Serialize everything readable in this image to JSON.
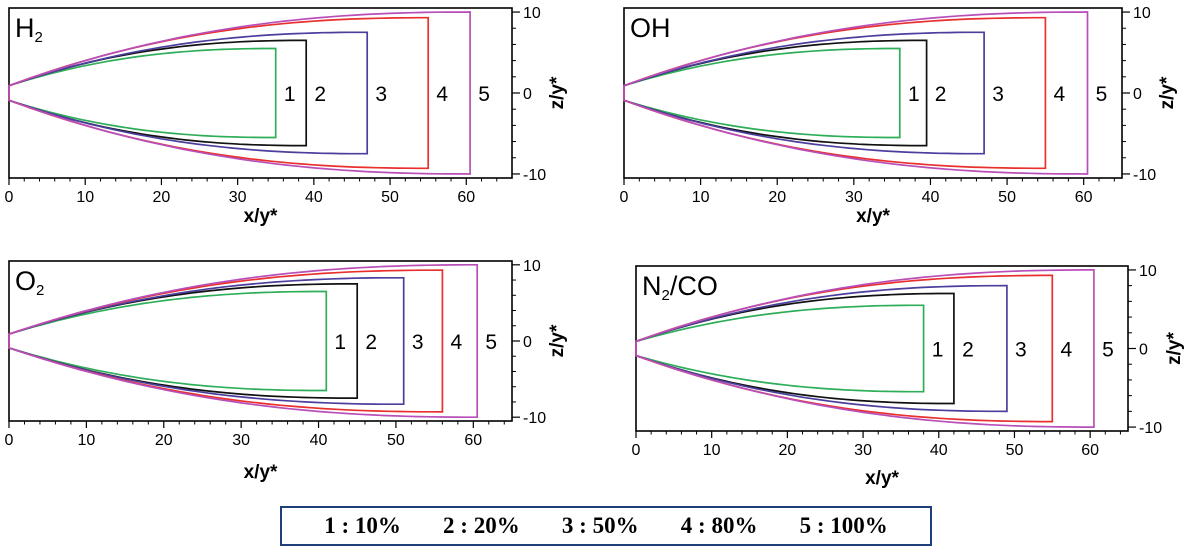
{
  "chart_data": [
    {
      "type": "line",
      "title": "H2",
      "xlabel": "x/y*",
      "ylabel": "z/y*",
      "xlim": [
        0,
        66
      ],
      "ylim": [
        -10.5,
        10.5
      ],
      "xticks": [
        "0",
        "10",
        "20",
        "30",
        "40",
        "50",
        "60"
      ],
      "yticks": [
        "10",
        "0",
        "-10"
      ],
      "series": [
        {
          "name": "1",
          "x_end": 35,
          "half_width": 5.5
        },
        {
          "name": "2",
          "x_end": 39,
          "half_width": 6.5
        },
        {
          "name": "3",
          "x_end": 47,
          "half_width": 7.5
        },
        {
          "name": "4",
          "x_end": 55,
          "half_width": 9.3
        },
        {
          "name": "5",
          "x_end": 60.5,
          "half_width": 10
        }
      ]
    },
    {
      "type": "line",
      "title": "OH",
      "xlabel": "x/y*",
      "ylabel": "z/y*",
      "xlim": [
        0,
        65
      ],
      "ylim": [
        -10.5,
        10.5
      ],
      "xticks": [
        "0",
        "10",
        "20",
        "30",
        "40",
        "50",
        "60"
      ],
      "yticks": [
        "10",
        "0",
        "-10"
      ],
      "series": [
        {
          "name": "1",
          "x_end": 36,
          "half_width": 5.5
        },
        {
          "name": "2",
          "x_end": 39.5,
          "half_width": 6.5
        },
        {
          "name": "3",
          "x_end": 47,
          "half_width": 7.5
        },
        {
          "name": "4",
          "x_end": 55,
          "half_width": 9.3
        },
        {
          "name": "5",
          "x_end": 60.5,
          "half_width": 10
        }
      ]
    },
    {
      "type": "line",
      "title": "O2",
      "xlabel": "x/y*",
      "ylabel": "z/y*",
      "xlim": [
        0,
        65
      ],
      "ylim": [
        -10.5,
        10.5
      ],
      "xticks": [
        "0",
        "10",
        "20",
        "30",
        "40",
        "50",
        "60"
      ],
      "yticks": [
        "10",
        "0",
        "-10"
      ],
      "series": [
        {
          "name": "1",
          "x_end": 41,
          "half_width": 6.5
        },
        {
          "name": "2",
          "x_end": 45,
          "half_width": 7.5
        },
        {
          "name": "3",
          "x_end": 51,
          "half_width": 8.3
        },
        {
          "name": "4",
          "x_end": 56,
          "half_width": 9.3
        },
        {
          "name": "5",
          "x_end": 60.5,
          "half_width": 10
        }
      ]
    },
    {
      "type": "line",
      "title": "N2/CO",
      "xlabel": "x/y*",
      "ylabel": "z/y*",
      "xlim": [
        0,
        65
      ],
      "ylim": [
        -10.5,
        10.5
      ],
      "xticks": [
        "0",
        "10",
        "20",
        "30",
        "40",
        "50",
        "60"
      ],
      "yticks": [
        "10",
        "0",
        "-10"
      ],
      "series": [
        {
          "name": "1",
          "x_end": 38,
          "half_width": 5.5
        },
        {
          "name": "2",
          "x_end": 42,
          "half_width": 7
        },
        {
          "name": "3",
          "x_end": 49,
          "half_width": 8
        },
        {
          "name": "4",
          "x_end": 55,
          "half_width": 9.3
        },
        {
          "name": "5",
          "x_end": 60.5,
          "half_width": 10
        }
      ]
    }
  ],
  "series_colors": {
    "1": "#2fae5a",
    "2": "#111111",
    "3": "#4b3f9e",
    "4": "#e8302e",
    "5": "#b84fb8"
  },
  "legend": [
    {
      "key": "1",
      "value": "10%"
    },
    {
      "key": "2",
      "value": "20%"
    },
    {
      "key": "3",
      "value": "50%"
    },
    {
      "key": "4",
      "value": "80%"
    },
    {
      "key": "5",
      "value": "100%"
    }
  ]
}
